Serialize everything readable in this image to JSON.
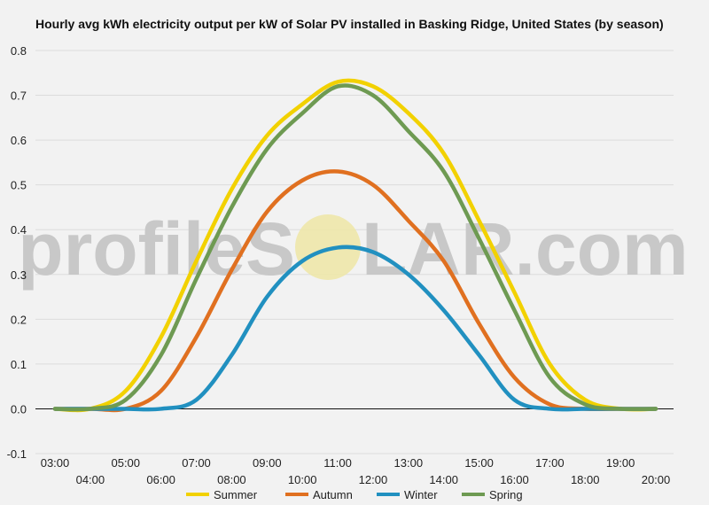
{
  "chart_data": {
    "type": "line",
    "title": "Hourly avg kWh electricity output per kW of Solar PV installed in Basking Ridge, United States (by season)",
    "xlabel": "",
    "ylabel": "",
    "ylim": [
      -0.1,
      0.8
    ],
    "yticks": [
      "0.8",
      "0.7",
      "0.6",
      "0.5",
      "0.4",
      "0.3",
      "0.2",
      "0.1",
      "0.0",
      "-0.1"
    ],
    "xticks": [
      "03:00",
      "04:00",
      "05:00",
      "06:00",
      "07:00",
      "08:00",
      "09:00",
      "10:00",
      "11:00",
      "12:00",
      "13:00",
      "14:00",
      "15:00",
      "16:00",
      "17:00",
      "18:00",
      "19:00",
      "20:00"
    ],
    "grid": true,
    "legend_position": "bottom",
    "watermark": {
      "left": "profileS",
      "right": "LAR.com"
    },
    "series": [
      {
        "name": "Summer",
        "color": "#f2d100",
        "values": [
          0.0,
          0.0,
          0.04,
          0.16,
          0.33,
          0.49,
          0.61,
          0.68,
          0.73,
          0.72,
          0.66,
          0.57,
          0.42,
          0.26,
          0.1,
          0.02,
          0.0,
          0.0
        ]
      },
      {
        "name": "Autumn",
        "color": "#e07020",
        "values": [
          0.0,
          0.0,
          0.0,
          0.04,
          0.16,
          0.31,
          0.44,
          0.51,
          0.53,
          0.5,
          0.42,
          0.33,
          0.19,
          0.07,
          0.01,
          0.0,
          0.0,
          0.0
        ]
      },
      {
        "name": "Winter",
        "color": "#2190c0",
        "values": [
          0.0,
          0.0,
          0.0,
          0.0,
          0.02,
          0.12,
          0.25,
          0.33,
          0.36,
          0.35,
          0.3,
          0.22,
          0.12,
          0.02,
          0.0,
          0.0,
          0.0,
          0.0
        ]
      },
      {
        "name": "Spring",
        "color": "#6e9a52",
        "values": [
          0.0,
          0.0,
          0.02,
          0.12,
          0.29,
          0.45,
          0.58,
          0.66,
          0.72,
          0.7,
          0.62,
          0.53,
          0.38,
          0.22,
          0.07,
          0.01,
          0.0,
          0.0
        ]
      }
    ]
  }
}
